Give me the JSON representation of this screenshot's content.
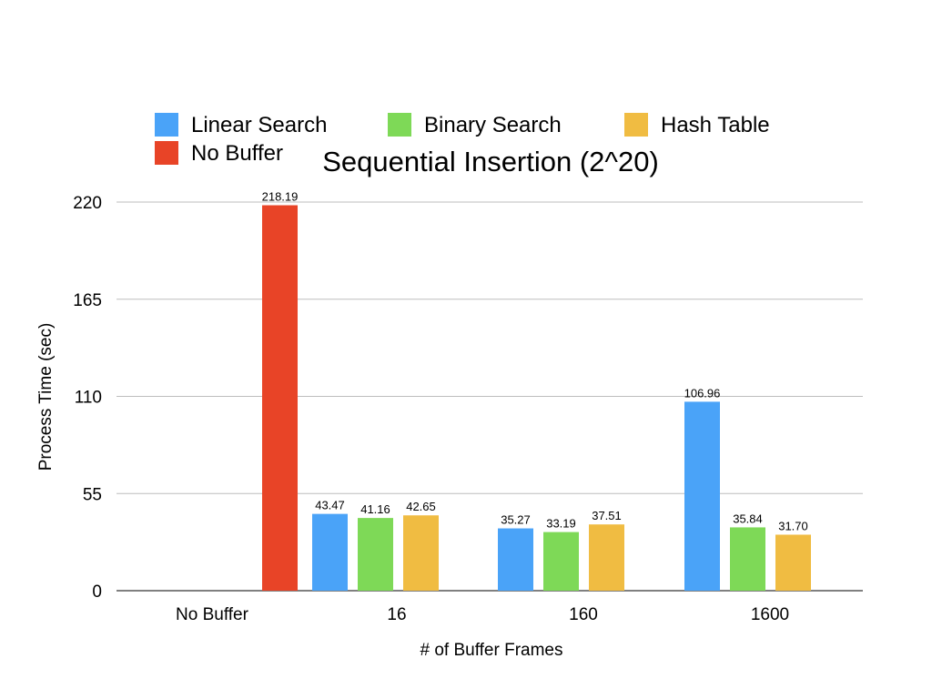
{
  "chart_data": {
    "type": "bar",
    "title": "Sequential Insertion (2^20)",
    "xlabel": "# of Buffer Frames",
    "ylabel": "Process Time (sec)",
    "ylim": [
      0,
      220
    ],
    "yticks": [
      "0",
      "55",
      "110",
      "165",
      "220"
    ],
    "categories": [
      "No Buffer",
      "16",
      "160",
      "1600"
    ],
    "grid": true,
    "legend_position": "top",
    "series": [
      {
        "name": "Linear Search",
        "color": "#4aa3f8",
        "values": [
          null,
          43.47,
          35.27,
          106.96
        ],
        "labels": [
          "",
          "43.47",
          "35.27",
          "106.96"
        ]
      },
      {
        "name": "Binary Search",
        "color": "#7ed957",
        "values": [
          null,
          41.16,
          33.19,
          35.84
        ],
        "labels": [
          "",
          "41.16",
          "33.19",
          "35.84"
        ]
      },
      {
        "name": "Hash Table",
        "color": "#f0bc42",
        "values": [
          null,
          42.65,
          37.51,
          31.7
        ],
        "labels": [
          "",
          "42.65",
          "37.51",
          "31.70"
        ]
      },
      {
        "name": "No Buffer",
        "color": "#e84427",
        "values": [
          218.19,
          null,
          null,
          null
        ],
        "labels": [
          "218.19",
          "",
          "",
          ""
        ]
      }
    ]
  }
}
